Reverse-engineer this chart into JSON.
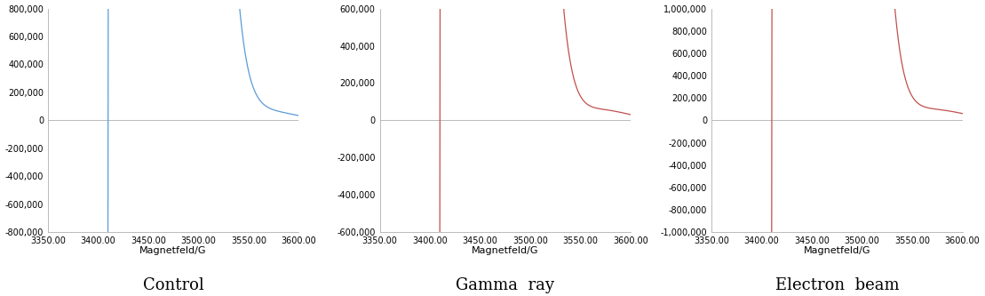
{
  "panels": [
    {
      "title": "Control",
      "color": "#5b9bd5",
      "ylim": [
        -800000,
        800000
      ],
      "yticks": [
        -800000,
        -600000,
        -400000,
        -200000,
        0,
        200000,
        400000,
        600000,
        800000
      ],
      "xlabel": "Magnetfeld/G",
      "xlim": [
        3350,
        3600
      ],
      "xticks": [
        3350.0,
        3400.0,
        3450.0,
        3500.0,
        3550.0,
        3600.0
      ]
    },
    {
      "title": "Gamma  ray",
      "color": "#c0504d",
      "ylim": [
        -600000,
        600000
      ],
      "yticks": [
        -600000,
        -400000,
        -200000,
        0,
        200000,
        400000,
        600000
      ],
      "xlabel": "Magnetfeld/G",
      "xlim": [
        3350,
        3600
      ],
      "xticks": [
        3350.0,
        3400.0,
        3450.0,
        3500.0,
        3550.0,
        3600.0
      ]
    },
    {
      "title": "Electron  beam",
      "color": "#c0504d",
      "ylim": [
        -1000000,
        1000000
      ],
      "yticks": [
        -1000000,
        -800000,
        -600000,
        -400000,
        -200000,
        0,
        200000,
        400000,
        600000,
        800000,
        1000000
      ],
      "xlabel": "Magnetfeld/G",
      "xlim": [
        3350,
        3600
      ],
      "xticks": [
        3350.0,
        3400.0,
        3450.0,
        3500.0,
        3550.0,
        3600.0
      ]
    }
  ]
}
